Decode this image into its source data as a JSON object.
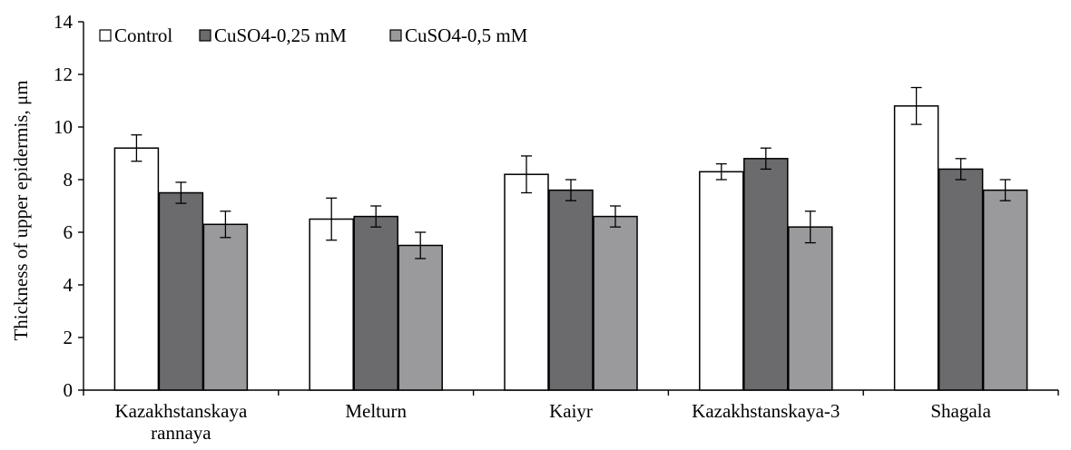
{
  "chart_data": {
    "type": "bar",
    "title": "",
    "xlabel": "",
    "ylabel": "Thickness of  upper epidermis, μm",
    "ylim": [
      0,
      14
    ],
    "yticks": [
      0,
      2,
      4,
      6,
      8,
      10,
      12,
      14
    ],
    "grid": false,
    "legend_position": "top-left",
    "categories": [
      [
        "Kazakhstanskaya",
        "rannaya"
      ],
      [
        "Melturn"
      ],
      [
        "Kaiyr"
      ],
      [
        "Kazakhstanskaya-3"
      ],
      [
        "Shagala"
      ]
    ],
    "series": [
      {
        "name": "Control",
        "color": "#ffffff",
        "values": [
          9.2,
          6.5,
          8.2,
          8.3,
          10.8
        ],
        "errors": [
          0.5,
          0.8,
          0.7,
          0.3,
          0.7
        ]
      },
      {
        "name": "CuSO4-0,25 mM",
        "color": "#6b6b6e",
        "values": [
          7.5,
          6.6,
          7.6,
          8.8,
          8.4
        ],
        "errors": [
          0.4,
          0.4,
          0.4,
          0.4,
          0.4
        ]
      },
      {
        "name": "CuSO4-0,5 mM",
        "color": "#9a9a9d",
        "values": [
          6.3,
          5.5,
          6.6,
          6.2,
          7.6
        ],
        "errors": [
          0.5,
          0.5,
          0.4,
          0.6,
          0.4
        ]
      }
    ]
  }
}
